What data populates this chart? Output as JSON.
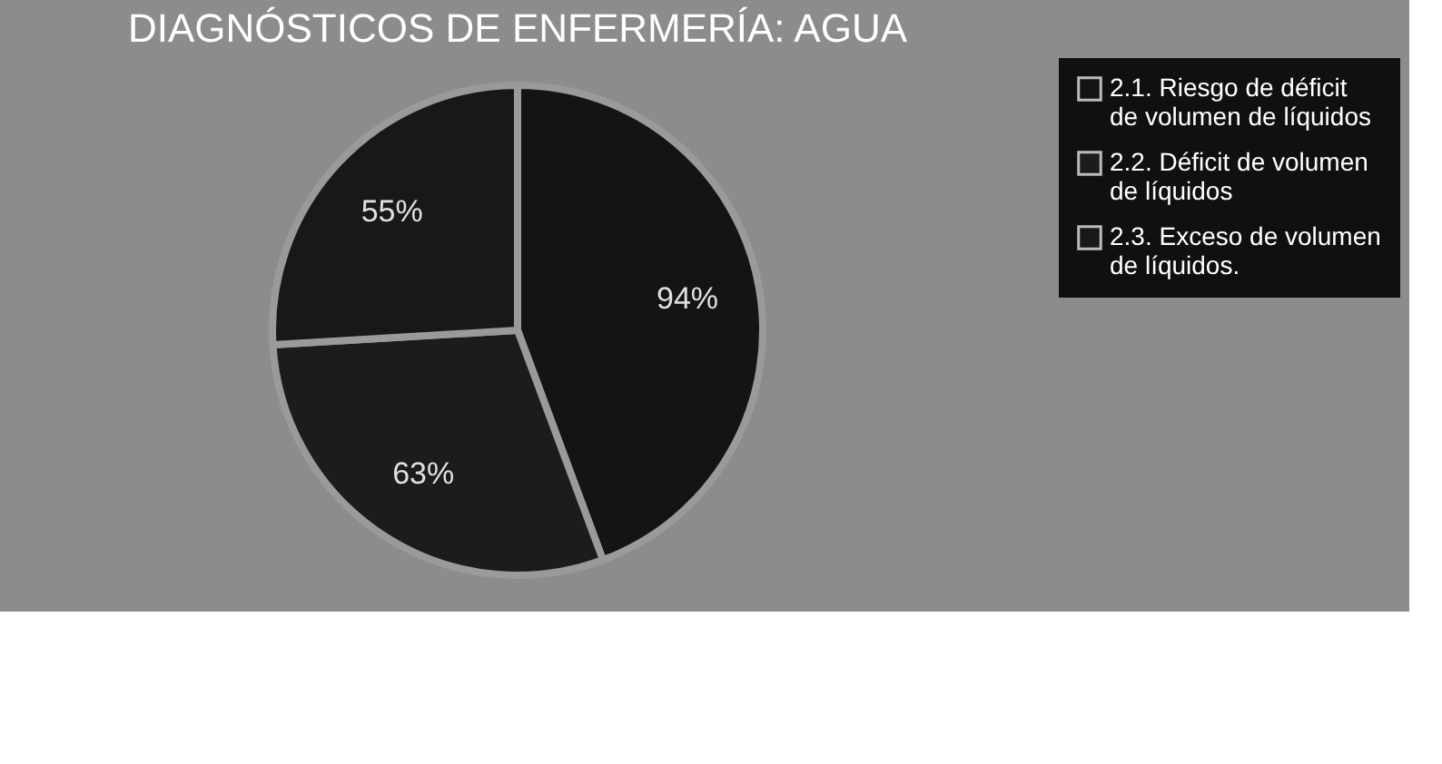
{
  "chart_data": {
    "type": "pie",
    "title": "DIAGNÓSTICOS DE ENFERMERÍA: AGUA",
    "categories": [
      "2.1. Riesgo de déficit de volumen de líquidos",
      "2.2. Déficit de volumen de líquidos",
      "2.3. Exceso de volumen de líquidos."
    ],
    "values": [
      94,
      63,
      55
    ],
    "value_labels": [
      "94%",
      "63%",
      "55%"
    ],
    "colors": [
      "#141414",
      "#1c1c1c",
      "#181818"
    ],
    "legend": "right"
  }
}
